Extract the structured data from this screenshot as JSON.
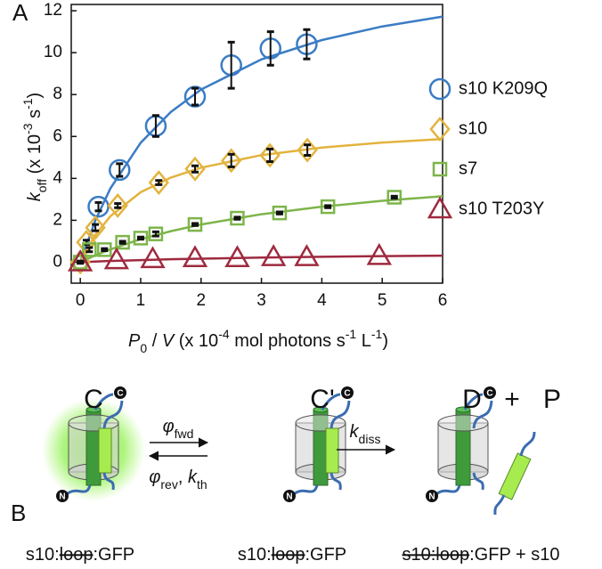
{
  "chart_data": {
    "type": "scatter",
    "panel_label": "A",
    "x_label": [
      {
        "text": "P",
        "style": "italic"
      },
      {
        "text": "0",
        "shift": "sub"
      },
      {
        "text": " / "
      },
      {
        "text": "V",
        "style": "italic"
      },
      {
        "text": " (x 10"
      },
      {
        "text": "-4",
        "shift": "super"
      },
      {
        "text": " mol photons s"
      },
      {
        "text": "-1",
        "shift": "super"
      },
      {
        "text": " L"
      },
      {
        "text": "-1",
        "shift": "super"
      },
      {
        "text": ")"
      }
    ],
    "y_label": [
      {
        "text": "k",
        "style": "italic"
      },
      {
        "text": "off",
        "shift": "sub"
      },
      {
        "text": " (x 10"
      },
      {
        "text": "-3",
        "shift": "super"
      },
      {
        "text": " s"
      },
      {
        "text": "-1",
        "shift": "super"
      },
      {
        "text": ")"
      }
    ],
    "xlim": [
      -0.15,
      6
    ],
    "ylim": [
      -1,
      12.3
    ],
    "xticks": [
      0,
      1,
      2,
      3,
      4,
      5,
      6
    ],
    "yticks": [
      0,
      2,
      4,
      6,
      8,
      10,
      12
    ],
    "fit_x": [
      0,
      0.25,
      0.5,
      1,
      1.5,
      2,
      3,
      4,
      5,
      6
    ],
    "series": [
      {
        "name": "s10 K209Q",
        "color": "#3b7cc4",
        "marker": "circle",
        "x": [
          0.3,
          0.65,
          1.25,
          1.9,
          2.5,
          3.15,
          3.75
        ],
        "values": [
          2.65,
          4.4,
          6.5,
          7.9,
          9.4,
          10.2,
          10.4
        ],
        "errors": [
          0.2,
          0.3,
          0.5,
          0.4,
          1.1,
          0.8,
          0.7
        ],
        "fit_values": [
          0,
          2.0,
          3.53,
          5.7,
          7.17,
          8.24,
          9.68,
          10.6,
          11.25,
          11.72
        ]
      },
      {
        "name": "s10",
        "color": "#e2b33e",
        "marker": "diamond",
        "x": [
          0,
          0.1,
          0.25,
          0.62,
          1.3,
          1.9,
          2.5,
          3.14,
          3.76
        ],
        "values": [
          0,
          0.95,
          1.65,
          2.7,
          3.8,
          4.45,
          4.85,
          5.1,
          5.35
        ],
        "errors": [
          0.05,
          0.1,
          0.15,
          0.1,
          0.1,
          0.15,
          0.3,
          0.3,
          0.25
        ],
        "fit_values": [
          0,
          1.31,
          2.2,
          3.34,
          4.04,
          4.51,
          5.11,
          5.47,
          5.71,
          5.88
        ]
      },
      {
        "name": "s7",
        "color": "#7db54a",
        "marker": "square",
        "x": [
          0,
          0.15,
          0.4,
          0.7,
          1.0,
          1.25,
          1.9,
          2.6,
          3.3,
          4.1,
          5.2
        ],
        "values": [
          0,
          0.6,
          0.6,
          0.95,
          1.15,
          1.35,
          1.8,
          2.1,
          2.35,
          2.65,
          3.1
        ],
        "errors": [
          0.05,
          0.1,
          0.05,
          0.05,
          0.05,
          0.1,
          0.05,
          0.05,
          0.05,
          0.05,
          0.05
        ],
        "fit_values": [
          0,
          0.33,
          0.61,
          1.1,
          1.48,
          1.8,
          2.29,
          2.65,
          2.93,
          3.15
        ]
      },
      {
        "name": "s10 T203Y",
        "color": "#9e2a3f",
        "marker": "triangle",
        "x": [
          0,
          0.6,
          1.2,
          1.9,
          2.6,
          3.2,
          3.75,
          4.95
        ],
        "values": [
          0,
          0.1,
          0.15,
          0.2,
          0.2,
          0.25,
          0.25,
          0.3
        ],
        "fit_values": [
          0,
          0.03,
          0.06,
          0.1,
          0.14,
          0.17,
          0.22,
          0.26,
          0.29,
          0.31
        ]
      }
    ]
  },
  "diagram": {
    "panel_label": "B",
    "states": [
      "C",
      "C'",
      "D"
    ],
    "plus": "+",
    "product": "P",
    "terminal_c": "C",
    "terminal_n": "N",
    "forward": [
      {
        "text": "φ",
        "style": "italic"
      },
      {
        "text": "fwd",
        "shift": "sub"
      }
    ],
    "reverse": [
      {
        "text": "φ",
        "style": "italic"
      },
      {
        "text": "rev",
        "shift": "sub"
      },
      {
        "text": ", "
      },
      {
        "text": "k",
        "style": "italic"
      },
      {
        "text": "th",
        "shift": "sub"
      }
    ],
    "dissociation": [
      {
        "text": "k",
        "style": "italic"
      },
      {
        "text": "diss",
        "shift": "sub"
      }
    ],
    "captions": [
      [
        {
          "text": "s10:"
        },
        {
          "text": "loop",
          "strike": true
        },
        {
          "text": ":GFP"
        }
      ],
      [
        {
          "text": "s10:"
        },
        {
          "text": "loop",
          "strike": true
        },
        {
          "text": ":GFP"
        }
      ],
      [
        {
          "text": "s10:loop",
          "strike": true
        },
        {
          "text": ":GFP + s10"
        }
      ]
    ]
  }
}
